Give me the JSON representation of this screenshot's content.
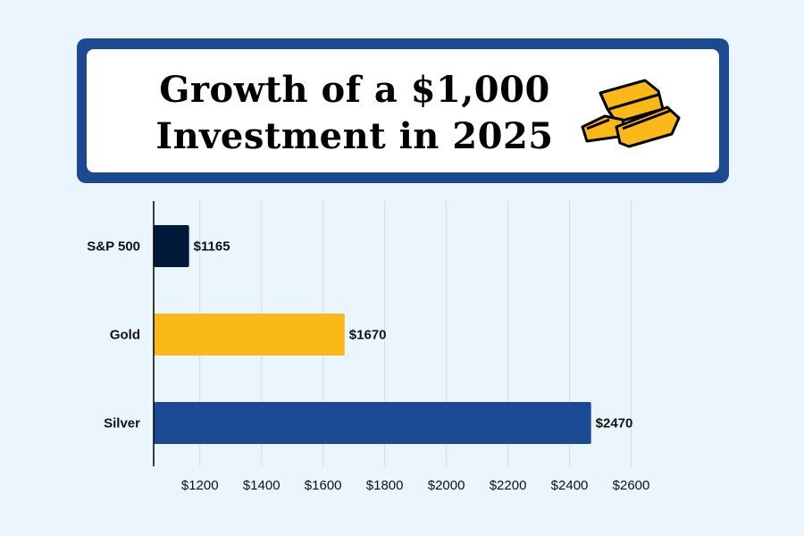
{
  "chart_data": {
    "type": "bar",
    "orientation": "horizontal",
    "title": "Growth of a $1,000 Investment in 2025",
    "categories": [
      "S&P 500",
      "Gold",
      "Silver"
    ],
    "values": [
      1165,
      1670,
      2470
    ],
    "data_labels": [
      "$1165",
      "$1670",
      "$2470"
    ],
    "colors": [
      "#011a3a",
      "#fbb917",
      "#1b4a93"
    ],
    "xlim": [
      1050,
      2700
    ],
    "xticks": [
      1200,
      1400,
      1600,
      1800,
      2000,
      2200,
      2400,
      2600
    ],
    "xtick_labels": [
      "$1200",
      "$1400",
      "$1600",
      "$1800",
      "$2000",
      "$2200",
      "$2400",
      "$2600"
    ],
    "xlabel": "",
    "ylabel": "",
    "grid": "vertical",
    "icon": "gold-bars-icon"
  }
}
